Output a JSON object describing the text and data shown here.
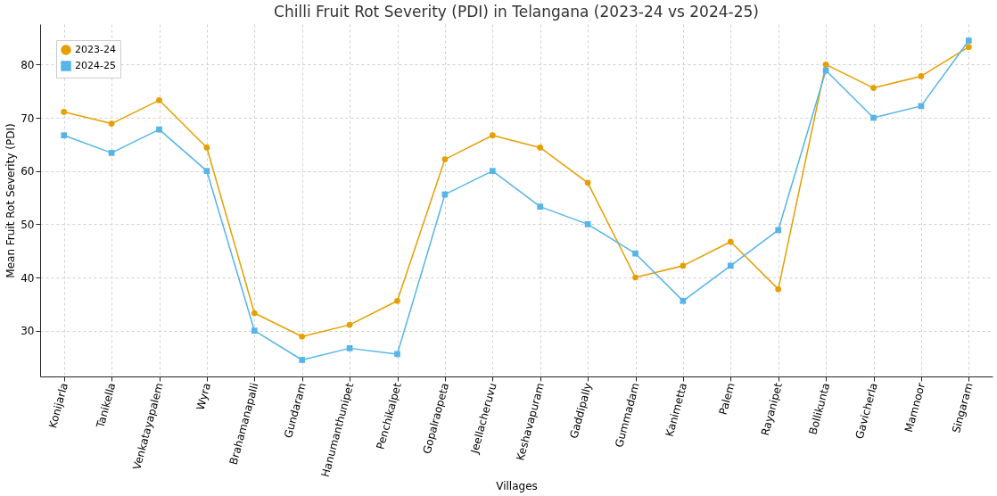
{
  "chart_data": {
    "type": "line",
    "title": "Chilli Fruit Rot Severity (PDI) in Telangana (2023-24 vs 2024-25)",
    "xlabel": "Villages",
    "ylabel": "Mean Fruit Rot Severity (PDI)",
    "categories": [
      "Konijarla",
      "Tanikella",
      "Venkatayapalem",
      "Wyra",
      "Brahamanapalli",
      "Gundaram",
      "Hanumanthunipet",
      "Penchikalpet",
      "Gopalraopeta",
      "Jeellacheruvu",
      "Keshavapuram",
      "Gaddipally",
      "Gummadam",
      "Kanimetta",
      "Palem",
      "Rayanipet",
      "Bollikunta",
      "Gavicherla",
      "Mamnoor",
      "Singaram"
    ],
    "series": [
      {
        "name": "2023-24",
        "color": "#e69f00",
        "marker": "circle",
        "values": [
          71.1,
          68.9,
          73.3,
          64.4,
          33.3,
          28.9,
          31.1,
          35.6,
          62.2,
          66.7,
          64.4,
          57.8,
          40.0,
          42.2,
          46.7,
          37.8,
          80.0,
          75.6,
          77.8,
          83.3
        ]
      },
      {
        "name": "2024-25",
        "color": "#56b4e9",
        "marker": "square",
        "values": [
          66.7,
          63.4,
          67.8,
          60.0,
          30.0,
          24.5,
          26.7,
          25.6,
          55.6,
          60.0,
          53.3,
          50.0,
          44.5,
          35.6,
          42.2,
          48.9,
          78.9,
          70.0,
          72.2,
          84.5
        ]
      }
    ],
    "ylim": [
      21.4,
      87.6
    ],
    "yticks": [
      30,
      40,
      50,
      60,
      70,
      80
    ],
    "grid": true,
    "legend": "top left",
    "line_style": "solid"
  }
}
